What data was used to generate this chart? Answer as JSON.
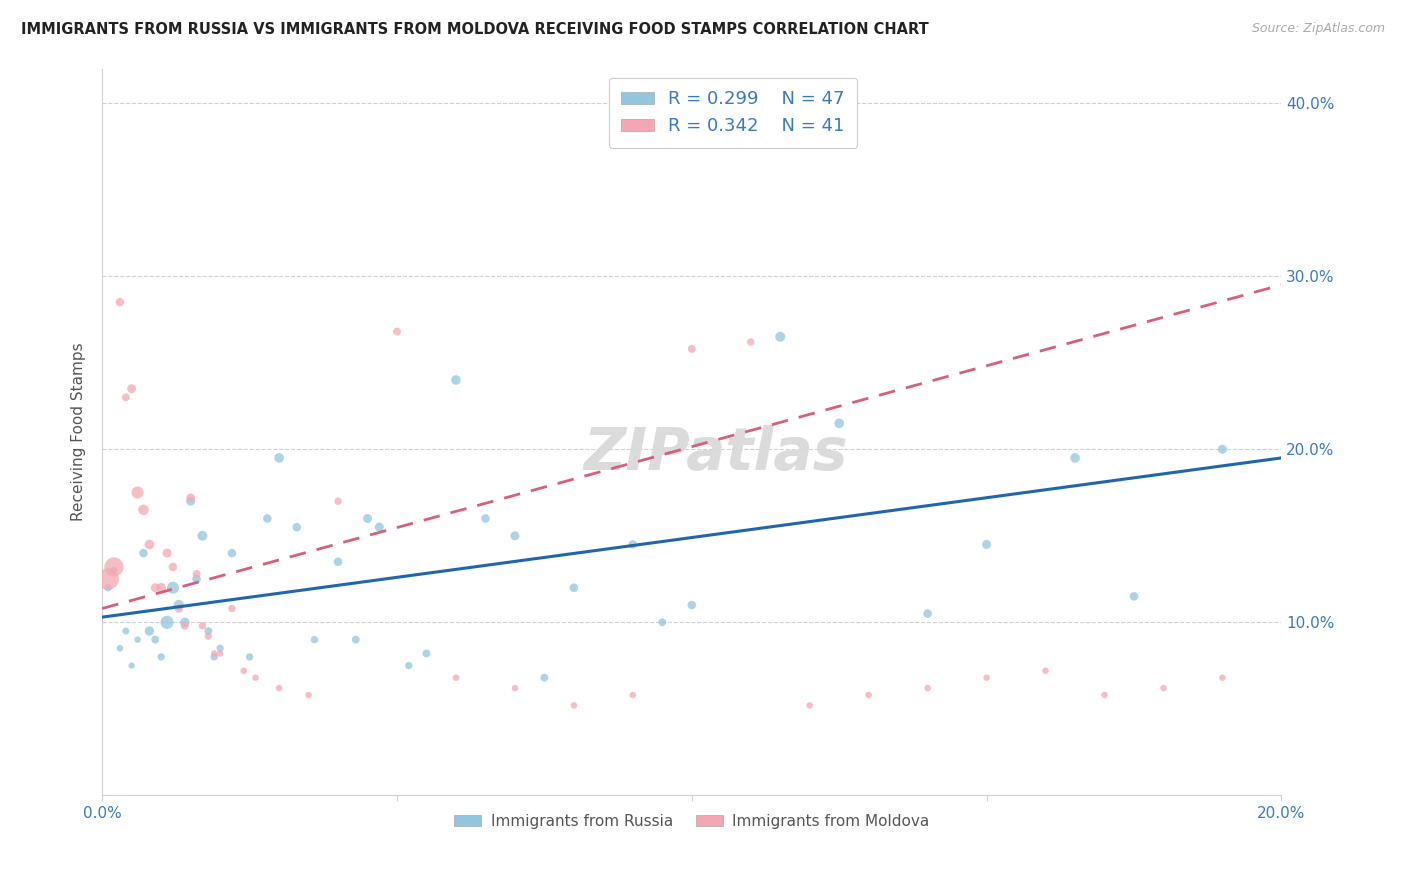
{
  "title": "IMMIGRANTS FROM RUSSIA VS IMMIGRANTS FROM MOLDOVA RECEIVING FOOD STAMPS CORRELATION CHART",
  "source": "Source: ZipAtlas.com",
  "ylabel_label": "Receiving Food Stamps",
  "xlim": [
    0.0,
    0.2
  ],
  "ylim": [
    0.0,
    0.42
  ],
  "xticks": [
    0.0,
    0.05,
    0.1,
    0.15,
    0.2
  ],
  "xtick_labels": [
    "0.0%",
    "",
    "",
    "",
    "20.0%"
  ],
  "ytick_labels_right": [
    "",
    "10.0%",
    "20.0%",
    "30.0%",
    "40.0%"
  ],
  "yticks_right": [
    0.0,
    0.1,
    0.2,
    0.3,
    0.4
  ],
  "russia_color": "#92c5de",
  "moldova_color": "#f4a7b2",
  "russia_line_color": "#2166ac",
  "moldova_line_color": "#d6607a",
  "russia_line_x0": 0.0,
  "russia_line_y0": 0.103,
  "russia_line_x1": 0.2,
  "russia_line_y1": 0.195,
  "moldova_line_x0": 0.0,
  "moldova_line_y0": 0.108,
  "moldova_line_x1": 0.2,
  "moldova_line_y1": 0.295,
  "russia_scatter_x": [
    0.001,
    0.002,
    0.003,
    0.004,
    0.005,
    0.006,
    0.007,
    0.008,
    0.009,
    0.01,
    0.011,
    0.012,
    0.013,
    0.014,
    0.015,
    0.016,
    0.017,
    0.018,
    0.019,
    0.02,
    0.022,
    0.025,
    0.028,
    0.03,
    0.033,
    0.036,
    0.04,
    0.043,
    0.047,
    0.052,
    0.06,
    0.065,
    0.07,
    0.075,
    0.09,
    0.095,
    0.1,
    0.115,
    0.125,
    0.14,
    0.15,
    0.165,
    0.175,
    0.19,
    0.045,
    0.055,
    0.08
  ],
  "russia_scatter_y": [
    0.12,
    0.13,
    0.085,
    0.095,
    0.075,
    0.09,
    0.14,
    0.095,
    0.09,
    0.08,
    0.1,
    0.12,
    0.11,
    0.1,
    0.17,
    0.125,
    0.15,
    0.095,
    0.08,
    0.085,
    0.14,
    0.08,
    0.16,
    0.195,
    0.155,
    0.09,
    0.135,
    0.09,
    0.155,
    0.075,
    0.24,
    0.16,
    0.15,
    0.068,
    0.145,
    0.1,
    0.11,
    0.265,
    0.215,
    0.105,
    0.145,
    0.195,
    0.115,
    0.2,
    0.16,
    0.082,
    0.12
  ],
  "russia_scatter_size": [
    30,
    28,
    22,
    25,
    20,
    22,
    38,
    45,
    32,
    28,
    90,
    75,
    55,
    48,
    42,
    38,
    50,
    32,
    28,
    28,
    38,
    28,
    38,
    48,
    38,
    28,
    38,
    32,
    42,
    28,
    48,
    38,
    42,
    32,
    38,
    32,
    38,
    52,
    48,
    38,
    42,
    48,
    38,
    42,
    42,
    32,
    38
  ],
  "moldova_scatter_x": [
    0.001,
    0.002,
    0.003,
    0.004,
    0.005,
    0.006,
    0.007,
    0.008,
    0.009,
    0.01,
    0.011,
    0.012,
    0.013,
    0.014,
    0.015,
    0.016,
    0.017,
    0.018,
    0.019,
    0.02,
    0.022,
    0.024,
    0.026,
    0.03,
    0.035,
    0.04,
    0.05,
    0.06,
    0.07,
    0.08,
    0.09,
    0.1,
    0.11,
    0.12,
    0.13,
    0.14,
    0.15,
    0.16,
    0.17,
    0.18,
    0.19
  ],
  "moldova_scatter_y": [
    0.125,
    0.132,
    0.285,
    0.23,
    0.235,
    0.175,
    0.165,
    0.145,
    0.12,
    0.12,
    0.14,
    0.132,
    0.108,
    0.098,
    0.172,
    0.128,
    0.098,
    0.092,
    0.082,
    0.082,
    0.108,
    0.072,
    0.068,
    0.062,
    0.058,
    0.17,
    0.268,
    0.068,
    0.062,
    0.052,
    0.058,
    0.258,
    0.262,
    0.052,
    0.058,
    0.062,
    0.068,
    0.072,
    0.058,
    0.062,
    0.068
  ],
  "moldova_scatter_size": [
    240,
    190,
    38,
    32,
    42,
    75,
    58,
    48,
    42,
    48,
    42,
    38,
    38,
    32,
    38,
    32,
    28,
    28,
    22,
    22,
    28,
    22,
    22,
    22,
    22,
    28,
    32,
    22,
    22,
    22,
    22,
    32,
    28,
    22,
    22,
    22,
    22,
    22,
    22,
    22,
    22
  ]
}
